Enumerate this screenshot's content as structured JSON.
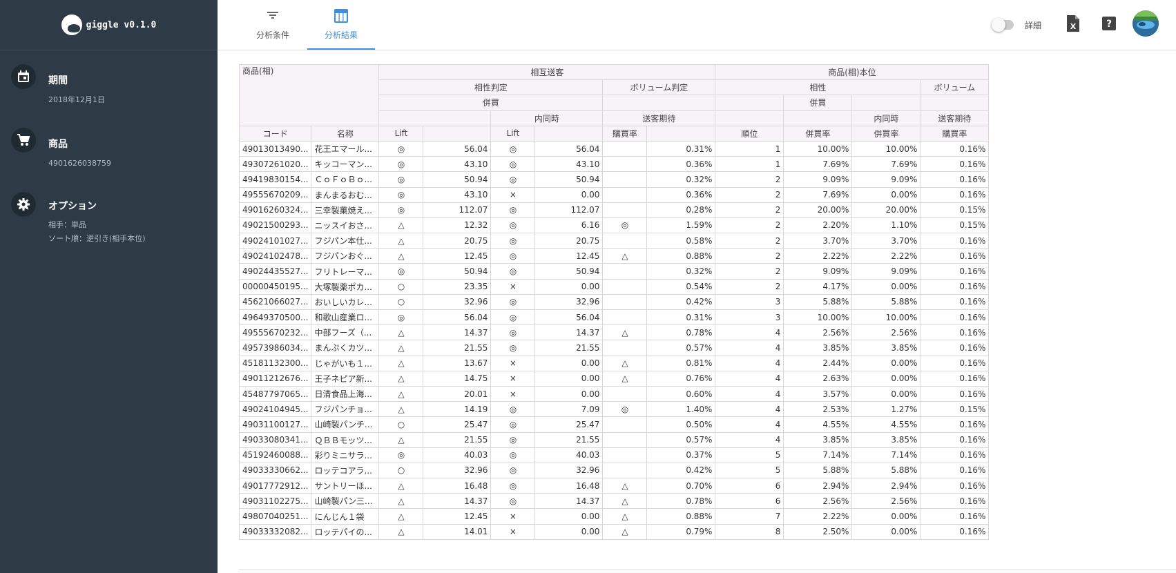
{
  "app": {
    "title": "giggle v0.1.0"
  },
  "sidebar": {
    "sections": [
      {
        "icon": "calendar-icon",
        "heading": "期間",
        "lines": [
          "2018年12月1日"
        ]
      },
      {
        "icon": "cart-icon",
        "heading": "商品",
        "lines": [
          "4901626038759"
        ]
      },
      {
        "icon": "gear-icon",
        "heading": "オプション",
        "lines": [
          "相手：単品",
          "ソート順：逆引き(相手本位)"
        ]
      }
    ]
  },
  "tabs": [
    {
      "icon": "filter-icon",
      "label": "分析条件",
      "active": false
    },
    {
      "icon": "table-icon",
      "label": "分析結果",
      "active": true
    }
  ],
  "header_right": {
    "toggle_label": "詳細",
    "toggle_on": false,
    "icons": [
      "excel-export-icon",
      "help-icon",
      "user-avatar"
    ]
  },
  "colors": {
    "accent": "#3d8fe0",
    "sidebar_bg": "#2e3b47",
    "header_cell_bg": "#f7f3f8"
  },
  "table": {
    "header": {
      "group_product": "商品(相)",
      "group_mutual": "相互送客",
      "group_base": "商品(相)本位",
      "affinity_judgement": "相性判定",
      "volume_judgement": "ボリューム判定",
      "affinity": "相性",
      "volume": "ボリューム",
      "co_purchase": "併買",
      "co_purchase_base": "併買",
      "same_time": "内同時",
      "send_expect": "送客期待",
      "same_time_base": "内同時",
      "send_expect_base": "送客期待",
      "columns": [
        "コード",
        "名称",
        "Lift",
        "",
        "Lift",
        "",
        "購買率",
        "",
        "順位",
        "併買率",
        "併買率",
        "購買率"
      ]
    },
    "rows": [
      [
        "49013013490...",
        "花王エマール...",
        "◎",
        "56.04",
        "◎",
        "56.04",
        "",
        "0.31%",
        "1",
        "10.00%",
        "10.00%",
        "0.16%"
      ],
      [
        "49307261020...",
        "キッコーマン...",
        "◎",
        "43.10",
        "◎",
        "43.10",
        "",
        "0.36%",
        "1",
        "7.69%",
        "7.69%",
        "0.16%"
      ],
      [
        "49419830154...",
        "ＣｏＦｏＢｏ...",
        "◎",
        "50.94",
        "◎",
        "50.94",
        "",
        "0.32%",
        "2",
        "9.09%",
        "9.09%",
        "0.16%"
      ],
      [
        "49555670209...",
        "まんまるおむ...",
        "◎",
        "43.10",
        "×",
        "0.00",
        "",
        "0.36%",
        "2",
        "7.69%",
        "0.00%",
        "0.16%"
      ],
      [
        "49016260324...",
        "三幸製菓焼え...",
        "◎",
        "112.07",
        "◎",
        "112.07",
        "",
        "0.28%",
        "2",
        "20.00%",
        "20.00%",
        "0.15%"
      ],
      [
        "49021500293...",
        "ニッスイおさ...",
        "△",
        "12.32",
        "◎",
        "6.16",
        "◎",
        "1.59%",
        "2",
        "2.20%",
        "1.10%",
        "0.15%"
      ],
      [
        "49024101027...",
        "フジパン本仕...",
        "△",
        "20.75",
        "◎",
        "20.75",
        "",
        "0.58%",
        "2",
        "3.70%",
        "3.70%",
        "0.16%"
      ],
      [
        "49024102478...",
        "フジパンおぐ...",
        "△",
        "12.45",
        "◎",
        "12.45",
        "△",
        "0.88%",
        "2",
        "2.22%",
        "2.22%",
        "0.16%"
      ],
      [
        "49024435527...",
        "フリトレーマ...",
        "◎",
        "50.94",
        "◎",
        "50.94",
        "",
        "0.32%",
        "2",
        "9.09%",
        "9.09%",
        "0.16%"
      ],
      [
        "00000450195...",
        "大塚製薬ポカ...",
        "○",
        "23.35",
        "×",
        "0.00",
        "",
        "0.54%",
        "2",
        "4.17%",
        "0.00%",
        "0.16%"
      ],
      [
        "45621066027...",
        "おいしいカレ...",
        "○",
        "32.96",
        "◎",
        "32.96",
        "",
        "0.42%",
        "3",
        "5.88%",
        "5.88%",
        "0.16%"
      ],
      [
        "49649370500...",
        "和歌山産業ロ...",
        "◎",
        "56.04",
        "◎",
        "56.04",
        "",
        "0.31%",
        "3",
        "10.00%",
        "10.00%",
        "0.16%"
      ],
      [
        "49555670232...",
        "中部フーズ（...",
        "△",
        "14.37",
        "◎",
        "14.37",
        "△",
        "0.78%",
        "4",
        "2.56%",
        "2.56%",
        "0.16%"
      ],
      [
        "49573986034...",
        "まんぷくカツ...",
        "△",
        "21.55",
        "◎",
        "21.55",
        "",
        "0.57%",
        "4",
        "3.85%",
        "3.85%",
        "0.16%"
      ],
      [
        "45181132300...",
        "じゃがいも１...",
        "△",
        "13.67",
        "×",
        "0.00",
        "△",
        "0.81%",
        "4",
        "2.44%",
        "0.00%",
        "0.16%"
      ],
      [
        "49011212676...",
        "王子ネピア新...",
        "△",
        "14.75",
        "×",
        "0.00",
        "△",
        "0.76%",
        "4",
        "2.63%",
        "0.00%",
        "0.16%"
      ],
      [
        "45487797065...",
        "日清食品上海...",
        "△",
        "20.01",
        "×",
        "0.00",
        "",
        "0.60%",
        "4",
        "3.57%",
        "0.00%",
        "0.16%"
      ],
      [
        "49024104945...",
        "フジパンチョ...",
        "△",
        "14.19",
        "◎",
        "7.09",
        "◎",
        "1.40%",
        "4",
        "2.53%",
        "1.27%",
        "0.15%"
      ],
      [
        "49031100127...",
        "山崎製パンチ...",
        "○",
        "25.47",
        "◎",
        "25.47",
        "",
        "0.50%",
        "4",
        "4.55%",
        "4.55%",
        "0.16%"
      ],
      [
        "49033080341...",
        "ＱＢＢモッツ...",
        "△",
        "21.55",
        "◎",
        "21.55",
        "",
        "0.57%",
        "4",
        "3.85%",
        "3.85%",
        "0.16%"
      ],
      [
        "45192460088...",
        "彩りミニサラ...",
        "◎",
        "40.03",
        "◎",
        "40.03",
        "",
        "0.37%",
        "5",
        "7.14%",
        "7.14%",
        "0.16%"
      ],
      [
        "49033330662...",
        "ロッテコアラ...",
        "○",
        "32.96",
        "◎",
        "32.96",
        "",
        "0.42%",
        "5",
        "5.88%",
        "5.88%",
        "0.16%"
      ],
      [
        "49017772912...",
        "サントリーほ...",
        "△",
        "16.48",
        "◎",
        "16.48",
        "△",
        "0.70%",
        "6",
        "2.94%",
        "2.94%",
        "0.16%"
      ],
      [
        "49031102275...",
        "山崎製パン三...",
        "△",
        "14.37",
        "◎",
        "14.37",
        "△",
        "0.78%",
        "6",
        "2.56%",
        "2.56%",
        "0.16%"
      ],
      [
        "49807040251...",
        "にんじん１袋",
        "△",
        "12.45",
        "×",
        "0.00",
        "△",
        "0.88%",
        "7",
        "2.22%",
        "0.00%",
        "0.16%"
      ],
      [
        "49033332082...",
        "ロッテパイの...",
        "△",
        "14.01",
        "×",
        "0.00",
        "△",
        "0.79%",
        "8",
        "2.50%",
        "0.00%",
        "0.16%"
      ]
    ]
  }
}
